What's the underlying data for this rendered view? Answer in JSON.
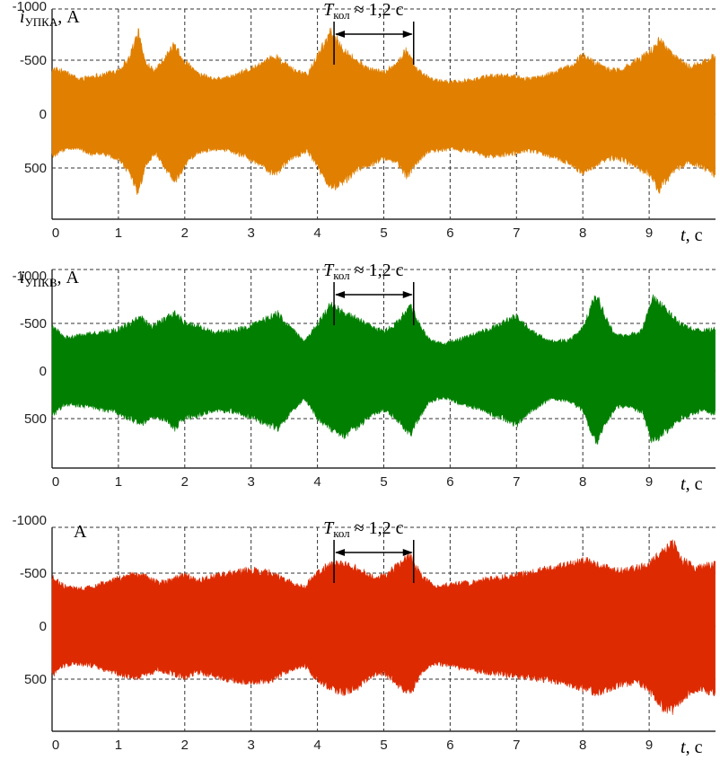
{
  "chart_data": [
    {
      "type": "area",
      "ylabel_main": "i",
      "ylabel_sub": "УПКА",
      "ylabel_unit": ", А",
      "xlabel_main": "t",
      "xlabel_unit": ", с",
      "annotation": {
        "main": "T",
        "sub": "кол",
        "rest": " ≈ 1,2 с",
        "from": 4.25,
        "to": 5.45
      },
      "xlim": [
        0,
        10
      ],
      "ylim": [
        -1000,
        1000
      ],
      "xticks": [
        "0",
        "1",
        "2",
        "3",
        "4",
        "5",
        "6",
        "7",
        "8",
        "9"
      ],
      "yticks": [
        "500",
        "0",
        "-500",
        "-1000"
      ],
      "color": "#e07f00",
      "series": [
        {
          "x": [
            0,
            0.2,
            0.4,
            0.6,
            0.8,
            1.0,
            1.15,
            1.3,
            1.4,
            1.55,
            1.7,
            1.85,
            2.0,
            2.2,
            2.45,
            2.7,
            2.95,
            3.2,
            3.35,
            3.6,
            3.85,
            4.0,
            4.2,
            4.4,
            4.6,
            4.8,
            5.0,
            5.2,
            5.35,
            5.5,
            5.7,
            6.0,
            6.3,
            6.6,
            6.9,
            7.2,
            7.5,
            7.8,
            8.0,
            8.2,
            8.4,
            8.6,
            8.8,
            9.0,
            9.15,
            9.35,
            9.6,
            9.8,
            10.0
          ],
          "upper": [
            400,
            330,
            320,
            380,
            380,
            420,
            540,
            750,
            500,
            360,
            500,
            640,
            480,
            360,
            330,
            350,
            420,
            500,
            580,
            420,
            350,
            500,
            710,
            640,
            520,
            480,
            420,
            450,
            600,
            460,
            350,
            330,
            350,
            400,
            380,
            350,
            400,
            460,
            560,
            480,
            420,
            430,
            500,
            570,
            720,
            560,
            450,
            500,
            580
          ],
          "lower": [
            -430,
            -400,
            -330,
            -360,
            -380,
            -420,
            -520,
            -780,
            -500,
            -420,
            -540,
            -660,
            -500,
            -380,
            -330,
            -350,
            -420,
            -480,
            -560,
            -430,
            -380,
            -560,
            -780,
            -620,
            -500,
            -420,
            -400,
            -480,
            -620,
            -420,
            -330,
            -300,
            -320,
            -360,
            -370,
            -330,
            -380,
            -450,
            -560,
            -480,
            -420,
            -430,
            -500,
            -580,
            -700,
            -560,
            -450,
            -480,
            -560
          ]
        }
      ]
    },
    {
      "type": "area",
      "ylabel_main": "i",
      "ylabel_sub": "УПКВ",
      "ylabel_unit": ", А",
      "xlabel_main": "t",
      "xlabel_unit": ", с",
      "annotation": {
        "main": "T",
        "sub": "кол",
        "rest": " ≈ 1,2 с",
        "from": 4.25,
        "to": 5.45
      },
      "xlim": [
        0,
        10
      ],
      "ylim": [
        -1000,
        1000
      ],
      "xticks": [
        "0",
        "1",
        "2",
        "3",
        "4",
        "5",
        "6",
        "7",
        "8",
        "9"
      ],
      "yticks": [
        "500",
        "0",
        "-500",
        "-1000"
      ],
      "color": "#007f00",
      "series": [
        {
          "x": [
            0,
            0.2,
            0.4,
            0.6,
            0.8,
            1.0,
            1.2,
            1.35,
            1.5,
            1.7,
            1.85,
            2.0,
            2.2,
            2.45,
            2.7,
            2.95,
            3.2,
            3.4,
            3.6,
            3.8,
            4.0,
            4.2,
            4.4,
            4.6,
            4.8,
            5.0,
            5.2,
            5.4,
            5.55,
            5.7,
            5.9,
            6.1,
            6.4,
            6.7,
            7.0,
            7.2,
            7.5,
            7.8,
            8.0,
            8.2,
            8.35,
            8.5,
            8.7,
            8.9,
            9.05,
            9.3,
            9.5,
            9.75,
            10.0
          ],
          "upper": [
            480,
            360,
            370,
            390,
            420,
            450,
            520,
            580,
            480,
            520,
            620,
            500,
            480,
            420,
            430,
            480,
            560,
            620,
            440,
            300,
            500,
            620,
            700,
            600,
            480,
            420,
            520,
            680,
            480,
            330,
            280,
            340,
            400,
            480,
            580,
            440,
            300,
            320,
            420,
            780,
            560,
            380,
            380,
            440,
            770,
            620,
            500,
            430,
            450
          ],
          "lower": [
            -480,
            -360,
            -380,
            -400,
            -420,
            -450,
            -520,
            -580,
            -480,
            -560,
            -620,
            -520,
            -480,
            -420,
            -430,
            -470,
            -560,
            -620,
            -460,
            -320,
            -500,
            -720,
            -620,
            -560,
            -480,
            -420,
            -520,
            -700,
            -480,
            -330,
            -290,
            -330,
            -400,
            -480,
            -600,
            -440,
            -320,
            -330,
            -460,
            -820,
            -560,
            -380,
            -380,
            -440,
            -800,
            -620,
            -500,
            -430,
            -450
          ]
        }
      ]
    },
    {
      "type": "area",
      "ylabel_main": "",
      "ylabel_sub": "",
      "ylabel_unit": "А",
      "xlabel_main": "t",
      "xlabel_unit": ", с",
      "annotation": {
        "main": "T",
        "sub": "кол",
        "rest": " ≈ 1,2 с",
        "from": 4.25,
        "to": 5.45
      },
      "xlim": [
        0,
        10
      ],
      "ylim": [
        -1000,
        1000
      ],
      "xticks": [
        "0",
        "1",
        "2",
        "3",
        "4",
        "5",
        "6",
        "7",
        "8",
        "9"
      ],
      "yticks": [
        "500",
        "0",
        "-500",
        "-1000"
      ],
      "color": "#dd2a00",
      "series": [
        {
          "x": [
            0,
            0.2,
            0.4,
            0.6,
            0.8,
            1.0,
            1.2,
            1.4,
            1.6,
            1.8,
            2.0,
            2.2,
            2.4,
            2.7,
            3.0,
            3.3,
            3.6,
            3.8,
            4.0,
            4.2,
            4.4,
            4.6,
            4.8,
            5.0,
            5.2,
            5.4,
            5.6,
            5.8,
            6.0,
            6.3,
            6.6,
            6.9,
            7.2,
            7.5,
            7.8,
            8.0,
            8.2,
            8.4,
            8.6,
            8.8,
            9.0,
            9.2,
            9.35,
            9.5,
            9.7,
            10.0
          ],
          "upper": [
            470,
            380,
            360,
            380,
            420,
            460,
            500,
            480,
            420,
            450,
            500,
            440,
            480,
            520,
            540,
            520,
            420,
            380,
            520,
            600,
            640,
            600,
            480,
            450,
            560,
            650,
            420,
            360,
            380,
            420,
            450,
            480,
            500,
            520,
            560,
            600,
            650,
            600,
            560,
            540,
            620,
            780,
            820,
            700,
            600,
            640
          ],
          "lower": [
            -470,
            -380,
            -360,
            -380,
            -420,
            -460,
            -500,
            -480,
            -420,
            -450,
            -500,
            -440,
            -480,
            -520,
            -540,
            -520,
            -420,
            -380,
            -520,
            -600,
            -600,
            -560,
            -480,
            -480,
            -580,
            -680,
            -460,
            -380,
            -400,
            -420,
            -460,
            -480,
            -520,
            -560,
            -600,
            -640,
            -600,
            -560,
            -540,
            -560,
            -600,
            -720,
            -820,
            -640,
            -560,
            -600
          ]
        }
      ]
    }
  ]
}
